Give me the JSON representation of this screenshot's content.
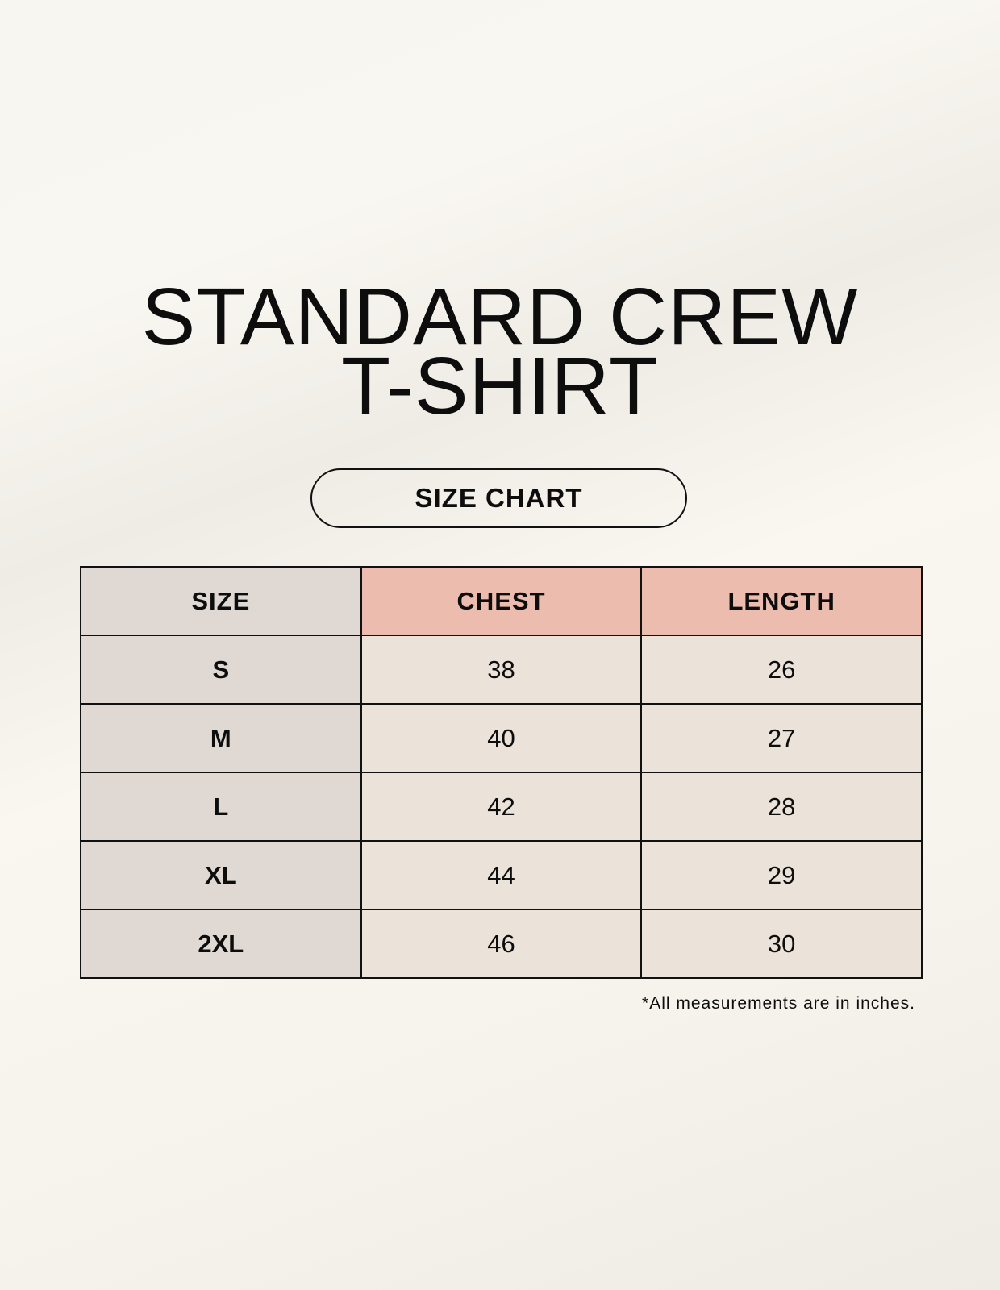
{
  "title": {
    "line1": "STANDARD CREW",
    "line2": "T-SHIRT"
  },
  "badge": "SIZE CHART",
  "table": {
    "headers": [
      "SIZE",
      "CHEST",
      "LENGTH"
    ],
    "rows": [
      [
        "S",
        "38",
        "26"
      ],
      [
        "M",
        "40",
        "27"
      ],
      [
        "L",
        "42",
        "28"
      ],
      [
        "XL",
        "44",
        "29"
      ],
      [
        "2XL",
        "46",
        "30"
      ]
    ]
  },
  "footnote": "*All measurements are in inches.",
  "colors": {
    "size_column": "#e0d9d3",
    "header_accent": "#ecbcae",
    "cell": "#ebe3d9",
    "background": "#f8f6f0"
  }
}
